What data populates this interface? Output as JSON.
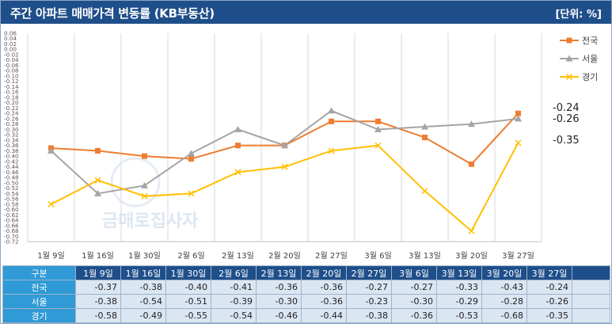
{
  "header": {
    "title": "주간 아파트 매매가격 변동률 (KB부동산)",
    "unit": "[단위: %]"
  },
  "watermark": {
    "text": "금매로집사자"
  },
  "table": {
    "corner": "구분"
  },
  "colors": {
    "전국": "#ed7d31",
    "서울": "#a5a5a5",
    "경기": "#ffc000"
  },
  "chart_data": {
    "type": "line",
    "categories": [
      "1월 9일",
      "1월 16일",
      "1월 30일",
      "2월 6일",
      "2월 13일",
      "2월 20일",
      "2월 27일",
      "3월 6일",
      "3월 13일",
      "3월 20일",
      "3월 27일"
    ],
    "series": [
      {
        "name": "전국",
        "values": [
          -0.37,
          -0.38,
          -0.4,
          -0.41,
          -0.36,
          -0.36,
          -0.27,
          -0.27,
          -0.33,
          -0.43,
          -0.24
        ],
        "marker": "square"
      },
      {
        "name": "서울",
        "values": [
          -0.38,
          -0.54,
          -0.51,
          -0.39,
          -0.3,
          -0.36,
          -0.23,
          -0.3,
          -0.29,
          -0.28,
          -0.26
        ],
        "marker": "triangle"
      },
      {
        "name": "경기",
        "values": [
          -0.58,
          -0.49,
          -0.55,
          -0.54,
          -0.46,
          -0.44,
          -0.38,
          -0.36,
          -0.53,
          -0.68,
          -0.35
        ],
        "marker": "x"
      }
    ],
    "ylim": [
      -0.72,
      0.06
    ],
    "ytick_step": 0.02,
    "end_labels": [
      "-0.24",
      "-0.26",
      "-0.35"
    ],
    "legend_position": "top-right",
    "grid": true
  }
}
